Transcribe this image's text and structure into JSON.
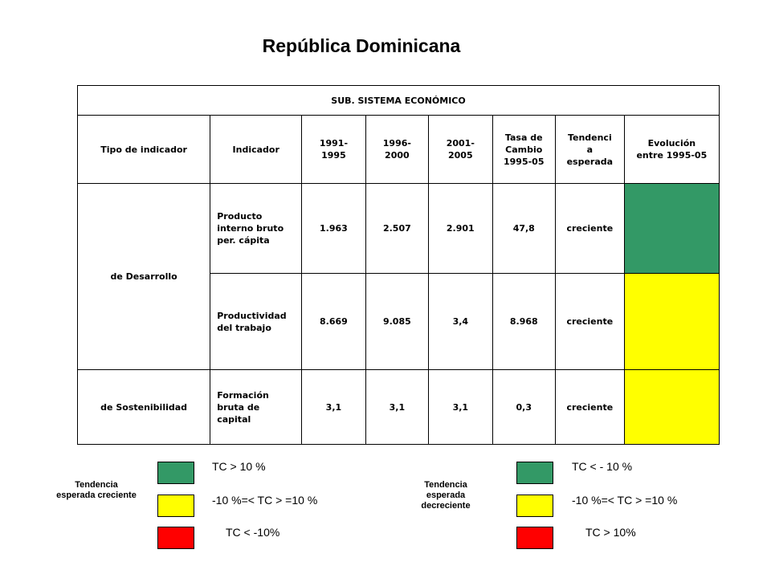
{
  "title": "República Dominicana",
  "table": {
    "caption": "SUB. SISTEMA ECONÓMICO",
    "headers": [
      "Tipo de indicador",
      "Indicador",
      "1991-\n1995",
      "1996-\n2000",
      "2001-\n2005",
      "Tasa de\nCambio\n1995-05",
      "Tendenci\na\nesperada",
      "Evolución\nentre 1995-05"
    ],
    "group1": "de Desarrollo",
    "group2": "de Sostenibilidad",
    "rows": [
      {
        "indicator": "Producto\ninterno bruto\nper. cápita",
        "v1": "1.963",
        "v2": "2.507",
        "v3": "2.901",
        "rate": "47,8",
        "trend": "creciente",
        "evo_color": "#339966"
      },
      {
        "indicator": "Productividad\ndel trabajo",
        "v1": "8.669",
        "v2": "9.085",
        "v3": "3,4",
        "rate": "8.968",
        "trend": "creciente",
        "evo_color": "#ffff00"
      },
      {
        "indicator": "Formación\nbruta de\ncapital",
        "v1": "3,1",
        "v2": "3,1",
        "v3": "3,1",
        "rate": "0,3",
        "trend": "creciente",
        "evo_color": "#ffff00"
      }
    ]
  },
  "legend": {
    "left_label": "Tendencia\nesperada creciente",
    "right_label": "Tendencia\nesperada\ndecreciente",
    "left_items": [
      "TC > 10 %",
      "-10 %=< TC > =10 %",
      "TC < -10%"
    ],
    "right_items": [
      "TC < - 10 %",
      "-10 %=< TC > =10 %",
      "TC > 10%"
    ],
    "colors": [
      "#339966",
      "#ffff00",
      "#ff0000"
    ]
  }
}
